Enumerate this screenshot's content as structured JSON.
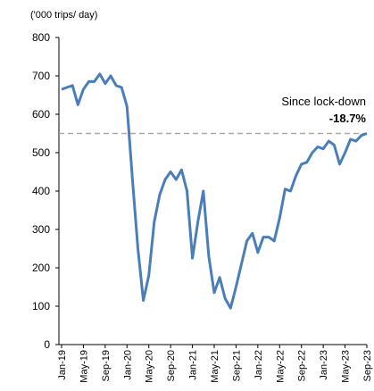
{
  "chart_data": {
    "type": "line",
    "y_axis_label": "('000 trips/ day)",
    "categories": [
      "Jan-19",
      null,
      null,
      null,
      "May-19",
      null,
      null,
      null,
      "Sep-19",
      null,
      null,
      null,
      "Jan-20",
      null,
      null,
      null,
      "May-20",
      null,
      null,
      null,
      "Sep-20",
      null,
      null,
      null,
      "Jan-21",
      null,
      null,
      null,
      "May-21",
      null,
      null,
      null,
      "Sep-21",
      null,
      null,
      null,
      "Jan-22",
      null,
      null,
      null,
      "May-22",
      null,
      null,
      null,
      "Sep-22",
      null,
      null,
      null,
      "Jan-23",
      null,
      null,
      null,
      "May-23",
      null,
      null,
      null,
      "Sep-23"
    ],
    "series": [
      {
        "name": "Trips",
        "color": "#4a7ebb",
        "values": [
          665,
          670,
          675,
          625,
          665,
          685,
          685,
          705,
          680,
          700,
          675,
          670,
          620,
          430,
          250,
          115,
          180,
          320,
          390,
          430,
          450,
          430,
          455,
          400,
          225,
          320,
          400,
          230,
          135,
          175,
          120,
          95,
          150,
          210,
          270,
          290,
          240,
          280,
          280,
          270,
          330,
          405,
          400,
          440,
          470,
          475,
          500,
          515,
          510,
          530,
          520,
          470,
          500,
          535,
          530,
          545,
          550
        ]
      }
    ],
    "ylim": [
      0,
      800
    ],
    "yticks": [
      0,
      100,
      200,
      300,
      400,
      500,
      600,
      700,
      800
    ],
    "reference_line": {
      "value": 550,
      "color": "#aaaaaa"
    },
    "annotation": {
      "text": "Since lock-down",
      "value_text": "-18.7%"
    }
  }
}
